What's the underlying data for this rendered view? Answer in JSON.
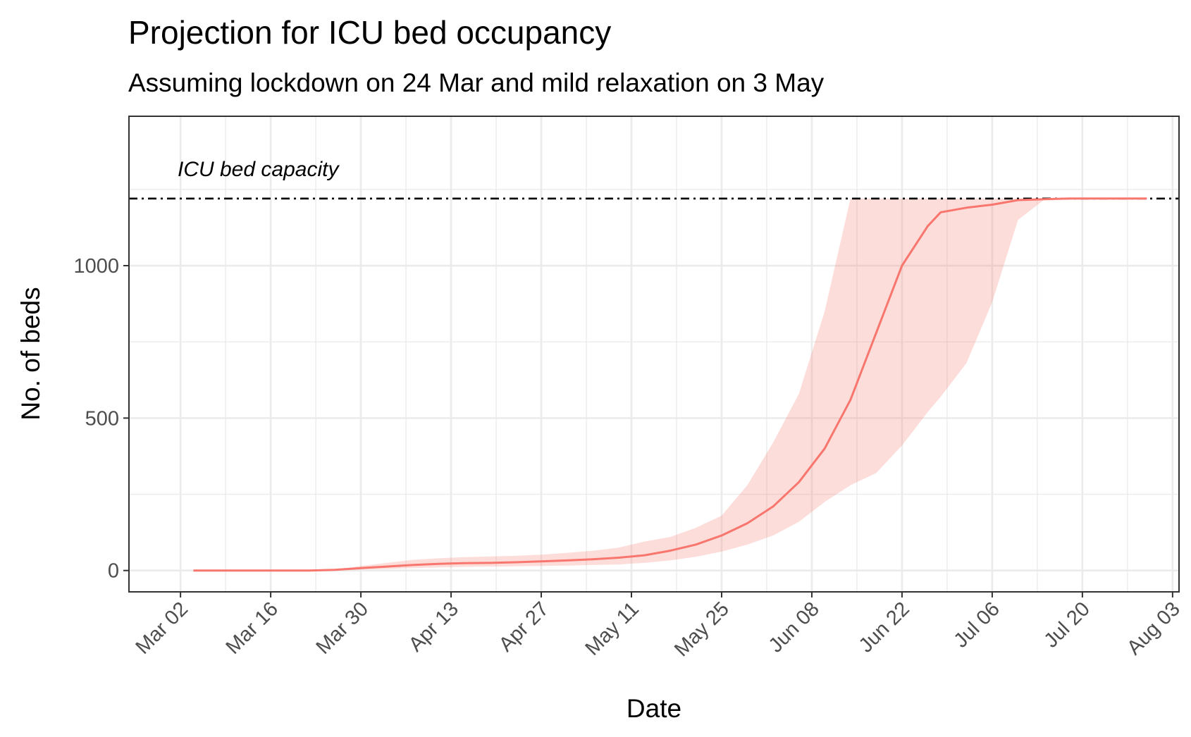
{
  "chart_data": {
    "type": "line",
    "title": "Projection for ICU bed occupancy",
    "subtitle": "Assuming lockdown on 24 Mar and mild relaxation on 3 May",
    "xlabel": "Date",
    "ylabel": "No. of beds",
    "x_ticks": [
      "2020-03-02",
      "2020-03-16",
      "2020-03-30",
      "2020-04-13",
      "2020-04-27",
      "2020-05-11",
      "2020-05-25",
      "2020-06-08",
      "2020-06-22",
      "2020-07-06",
      "2020-07-20",
      "2020-08-03"
    ],
    "x_tick_labels": [
      "Mar 02",
      "Mar 16",
      "Mar 30",
      "Apr 13",
      "Apr 27",
      "May 11",
      "May 25",
      "Jun 08",
      "Jun 22",
      "Jul 06",
      "Jul 20",
      "Aug 03"
    ],
    "xlim": [
      "2020-02-23",
      "2020-08-04"
    ],
    "y_ticks": [
      0,
      500,
      1000
    ],
    "ylim": [
      -70,
      1490
    ],
    "grid": true,
    "capacity": {
      "value": 1220,
      "label": "ICU bed capacity",
      "linestyle": "dashdot",
      "color": "#000000"
    },
    "series": [
      {
        "color": "#F8766D",
        "x": [
          "2020-03-04",
          "2020-03-10",
          "2020-03-16",
          "2020-03-22",
          "2020-03-26",
          "2020-03-30",
          "2020-04-03",
          "2020-04-07",
          "2020-04-11",
          "2020-04-15",
          "2020-04-19",
          "2020-04-23",
          "2020-04-27",
          "2020-05-01",
          "2020-05-05",
          "2020-05-09",
          "2020-05-13",
          "2020-05-17",
          "2020-05-21",
          "2020-05-25",
          "2020-05-29",
          "2020-06-02",
          "2020-06-06",
          "2020-06-10",
          "2020-06-14",
          "2020-06-18",
          "2020-06-22",
          "2020-06-26",
          "2020-06-28",
          "2020-07-02",
          "2020-07-06",
          "2020-07-10",
          "2020-07-14",
          "2020-07-18",
          "2020-07-24",
          "2020-07-30"
        ],
        "values": [
          0,
          0,
          0,
          0,
          2,
          8,
          13,
          18,
          22,
          24,
          25,
          27,
          30,
          33,
          37,
          42,
          50,
          65,
          85,
          115,
          155,
          210,
          290,
          400,
          560,
          780,
          1000,
          1130,
          1175,
          1190,
          1200,
          1215,
          1218,
          1220,
          1220,
          1220
        ],
        "lower": [
          0,
          0,
          0,
          0,
          0,
          3,
          5,
          8,
          10,
          12,
          13,
          14,
          15,
          16,
          18,
          20,
          25,
          33,
          45,
          62,
          85,
          115,
          160,
          225,
          280,
          320,
          410,
          520,
          570,
          680,
          880,
          1150,
          1215,
          1220,
          1220,
          1220
        ],
        "upper": [
          0,
          0,
          0,
          0,
          2,
          15,
          25,
          35,
          40,
          44,
          46,
          48,
          52,
          58,
          65,
          75,
          95,
          110,
          140,
          180,
          280,
          420,
          580,
          850,
          1220,
          1220,
          1220,
          1220,
          1220,
          1220,
          1220,
          1220,
          1220,
          1220,
          1220,
          1220
        ]
      }
    ]
  }
}
